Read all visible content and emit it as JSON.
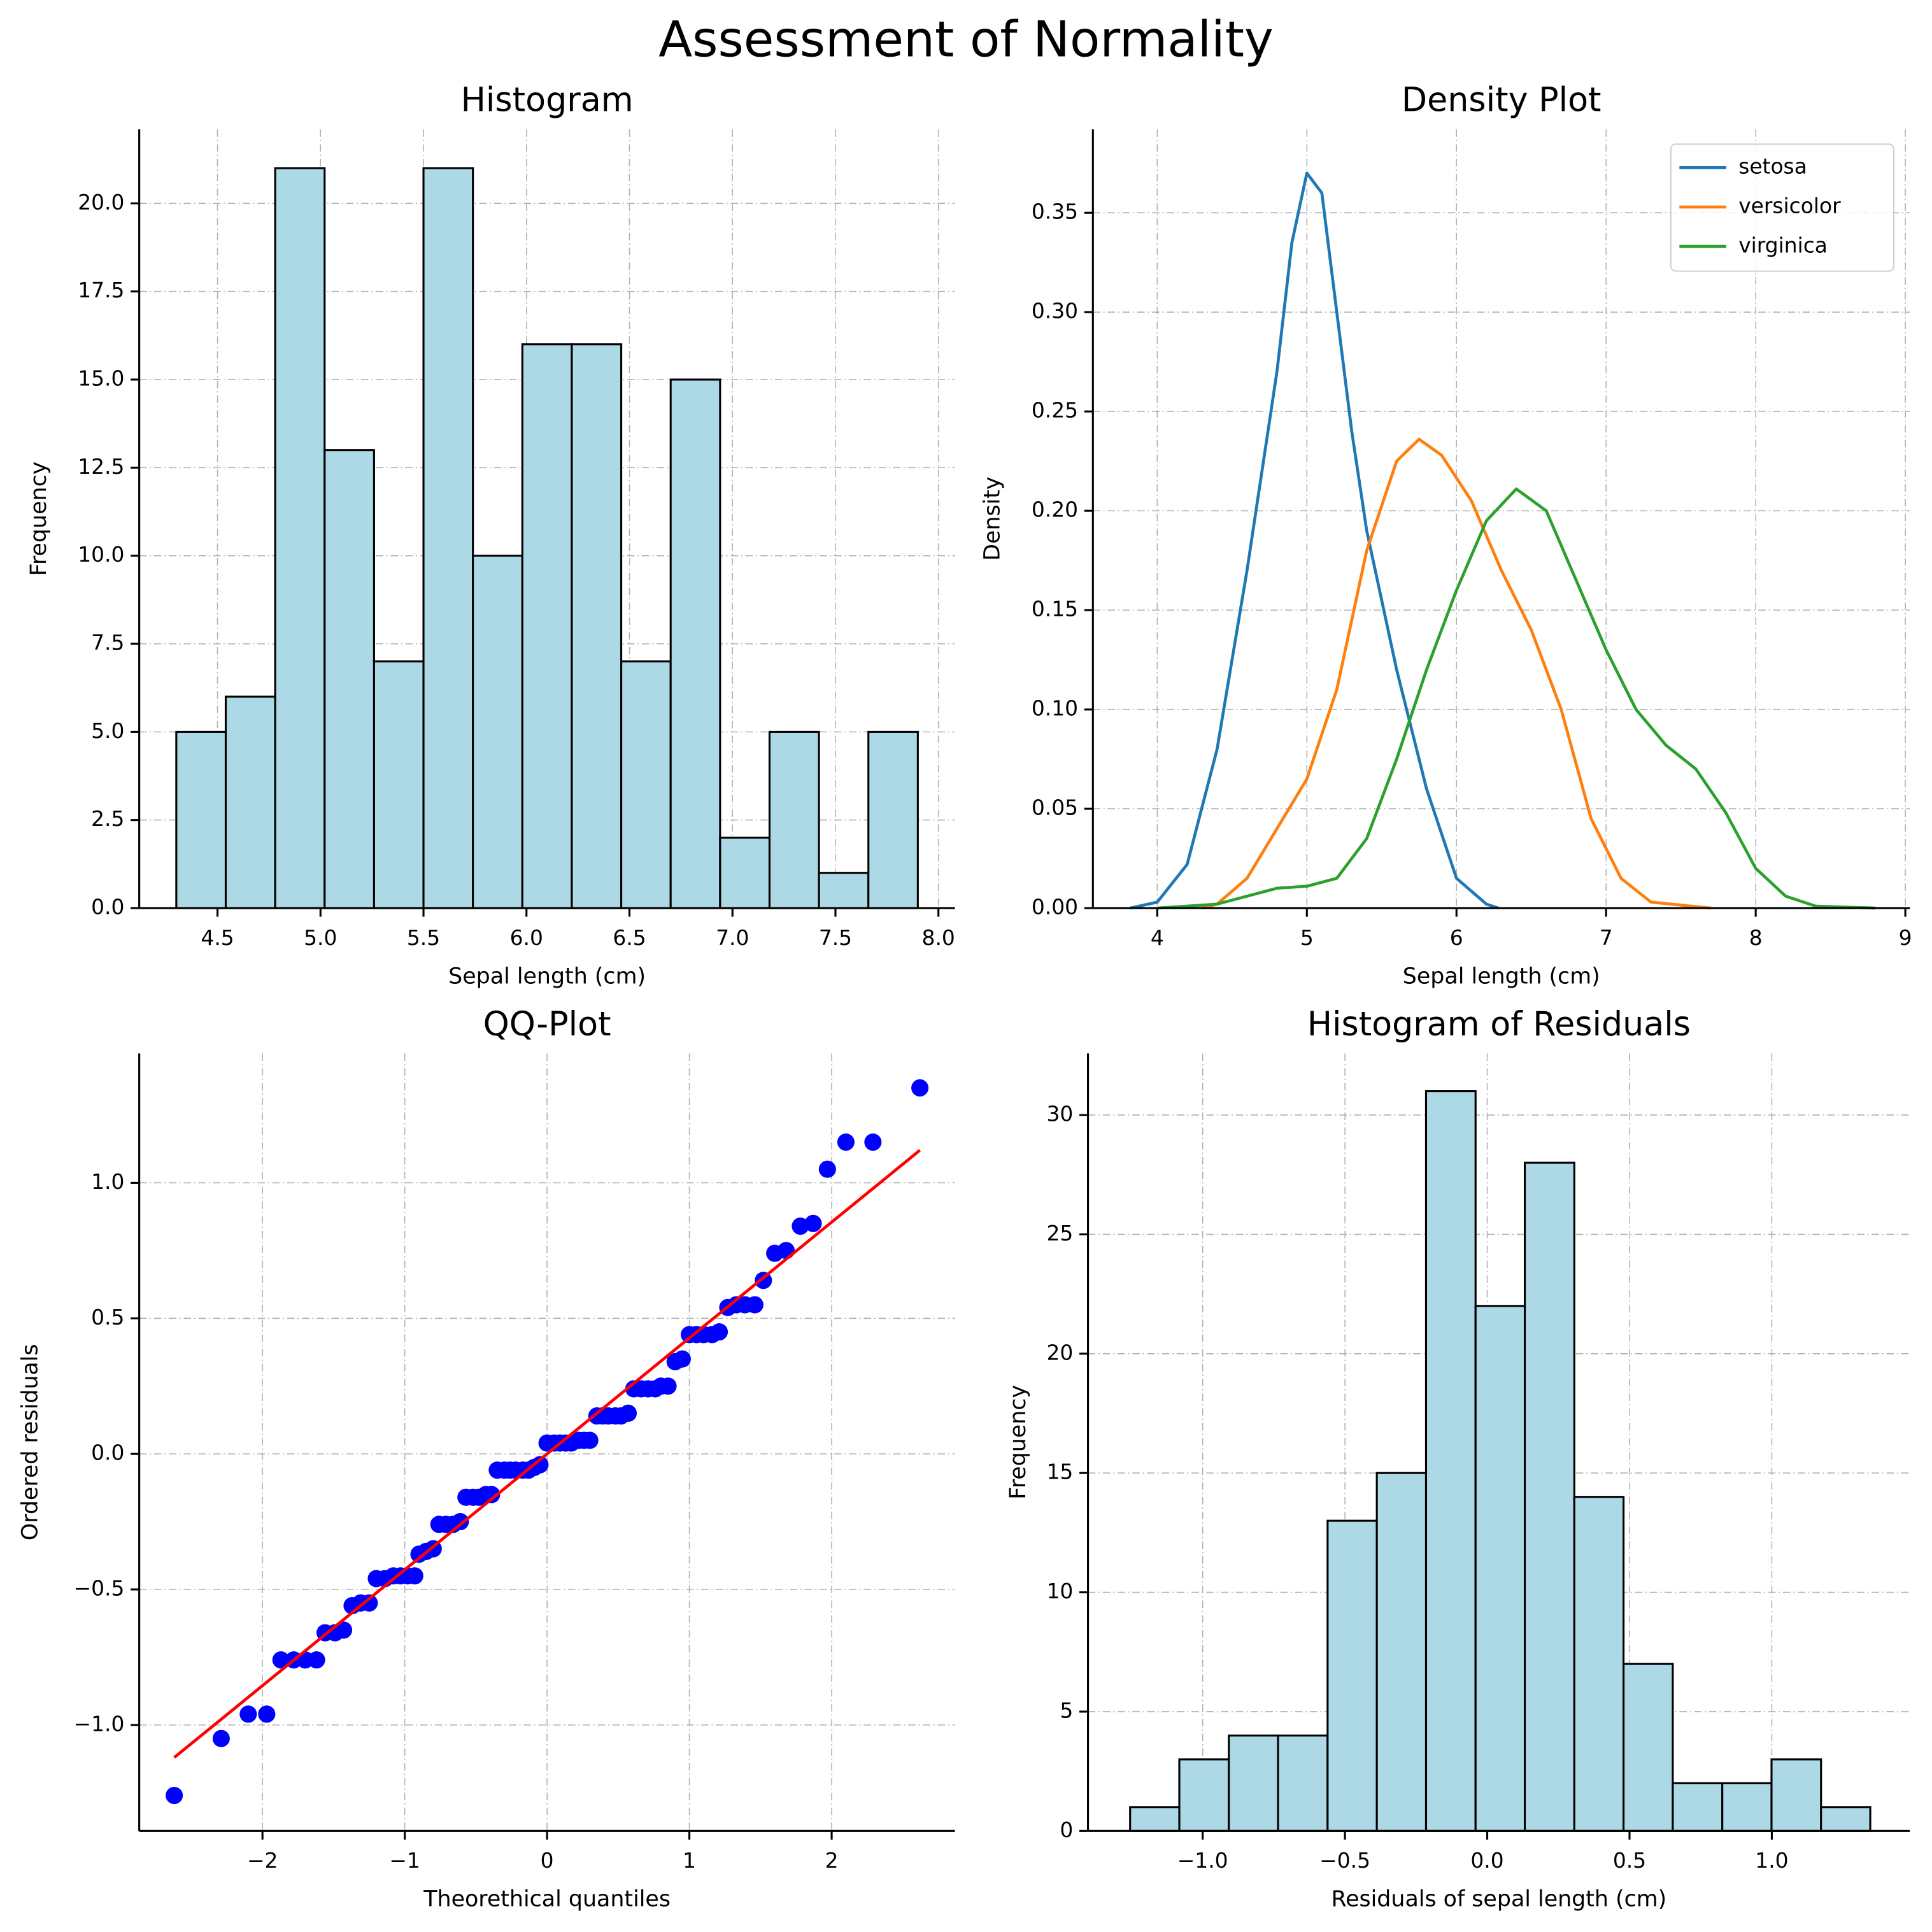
{
  "title": "Assessment of Normality",
  "chart_data": [
    {
      "type": "histogram",
      "title": "Histogram",
      "xlabel": "Sepal length (cm)",
      "ylabel": "Frequency",
      "bins": [
        4.3,
        4.54,
        4.78,
        5.02,
        5.26,
        5.5,
        5.74,
        5.98,
        6.22,
        6.46,
        6.7,
        6.94,
        7.18,
        7.42,
        7.66,
        7.9
      ],
      "values": [
        5,
        6,
        21,
        13,
        7,
        21,
        10,
        16,
        16,
        7,
        15,
        2,
        5,
        1,
        5
      ],
      "color": "#add8e6",
      "edgecolor": "#000000",
      "xlim": [
        4.12,
        8.08
      ],
      "ylim": [
        0,
        22.1
      ],
      "xticks": [
        4.5,
        {
          "value": 5,
          "label": "5.0"
        },
        5.5,
        {
          "value": 6,
          "label": "6.0"
        },
        6.5,
        {
          "value": 7,
          "label": "7.0"
        },
        7.5,
        {
          "value": 8,
          "label": "8.0"
        }
      ],
      "yticks": [
        {
          "value": 0,
          "label": "0.0"
        },
        2.5,
        {
          "value": 5,
          "label": "5.0"
        },
        7.5,
        {
          "value": 10,
          "label": "10.0"
        },
        12.5,
        {
          "value": 15,
          "label": "15.0"
        },
        17.5,
        {
          "value": 20,
          "label": "20.0"
        }
      ],
      "grid": true
    },
    {
      "type": "line",
      "title": "Density Plot",
      "xlabel": "Sepal length (cm)",
      "ylabel": "Density",
      "series": [
        {
          "name": "setosa",
          "color": "#1f77b4",
          "x": [
            3.82,
            4.0,
            4.2,
            4.4,
            4.6,
            4.8,
            4.9,
            5.0,
            5.1,
            5.2,
            5.3,
            5.4,
            5.6,
            5.8,
            6.0,
            6.2,
            6.28
          ],
          "values": [
            0.0,
            0.003,
            0.022,
            0.08,
            0.17,
            0.27,
            0.335,
            0.37,
            0.36,
            0.3,
            0.24,
            0.19,
            0.12,
            0.06,
            0.015,
            0.002,
            0.0
          ]
        },
        {
          "name": "versicolor",
          "color": "#ff7f0e",
          "x": [
            4.3,
            4.4,
            4.6,
            4.8,
            5.0,
            5.2,
            5.4,
            5.6,
            5.75,
            5.9,
            6.1,
            6.3,
            6.5,
            6.7,
            6.9,
            7.1,
            7.3,
            7.7
          ],
          "values": [
            0.0,
            0.002,
            0.015,
            0.04,
            0.065,
            0.11,
            0.18,
            0.225,
            0.236,
            0.228,
            0.205,
            0.17,
            0.14,
            0.1,
            0.045,
            0.015,
            0.003,
            0.0
          ]
        },
        {
          "name": "virginica",
          "color": "#2ca02c",
          "x": [
            4.0,
            4.4,
            4.8,
            5.0,
            5.2,
            5.4,
            5.6,
            5.8,
            6.0,
            6.2,
            6.4,
            6.6,
            6.8,
            7.0,
            7.2,
            7.4,
            7.6,
            7.8,
            8.0,
            8.2,
            8.4,
            8.8
          ],
          "values": [
            0.0,
            0.002,
            0.01,
            0.011,
            0.015,
            0.035,
            0.075,
            0.12,
            0.16,
            0.195,
            0.211,
            0.2,
            0.165,
            0.13,
            0.1,
            0.082,
            0.07,
            0.048,
            0.02,
            0.006,
            0.001,
            0.0
          ]
        }
      ],
      "legend": "upper right",
      "xlim": [
        3.57,
        9.03
      ],
      "ylim": [
        0,
        0.392
      ],
      "xticks": [
        4,
        5,
        6,
        7,
        8,
        9
      ],
      "yticks": [
        {
          "value": 0,
          "label": "0.00"
        },
        0.05,
        {
          "value": 0.1,
          "label": "0.10"
        },
        0.15,
        {
          "value": 0.2,
          "label": "0.20"
        },
        0.25,
        {
          "value": 0.3,
          "label": "0.30"
        },
        0.35
      ],
      "grid": true
    },
    {
      "type": "scatter",
      "title": "QQ-Plot",
      "xlabel": "Theorethical quantiles",
      "ylabel": "Ordered residuals",
      "x": [
        -2.62,
        -2.29,
        -2.1,
        -1.97,
        -1.87,
        -1.78,
        -1.7,
        -1.62,
        -1.56,
        -1.49,
        -1.43,
        -1.37,
        -1.31,
        -1.25,
        -1.2,
        -1.14,
        -1.08,
        -1.03,
        -0.98,
        -0.93,
        -0.9,
        -0.85,
        -0.8,
        -0.76,
        -0.71,
        -0.66,
        -0.61,
        -0.57,
        -0.52,
        -0.48,
        -0.43,
        -0.39,
        -0.35,
        -0.3,
        -0.26,
        -0.22,
        -0.17,
        -0.13,
        -0.09,
        -0.05,
        0,
        0.05,
        0.09,
        0.13,
        0.17,
        0.22,
        0.26,
        0.3,
        0.35,
        0.39,
        0.43,
        0.48,
        0.52,
        0.57,
        0.61,
        0.66,
        0.71,
        0.76,
        0.8,
        0.85,
        0.9,
        0.95,
        1.0,
        1.05,
        1.1,
        1.16,
        1.21,
        1.27,
        1.33,
        1.39,
        1.46,
        1.52,
        1.6,
        1.68,
        1.78,
        1.87,
        1.97,
        2.1,
        2.29,
        2.62
      ],
      "values": [
        -1.26,
        -1.05,
        -0.96,
        -0.96,
        -0.76,
        -0.76,
        -0.76,
        -0.76,
        -0.66,
        -0.66,
        -0.65,
        -0.56,
        -0.55,
        -0.55,
        -0.46,
        -0.46,
        -0.45,
        -0.45,
        -0.45,
        -0.45,
        -0.37,
        -0.36,
        -0.35,
        -0.26,
        -0.26,
        -0.26,
        -0.25,
        -0.16,
        -0.16,
        -0.16,
        -0.15,
        -0.15,
        -0.06,
        -0.06,
        -0.06,
        -0.06,
        -0.06,
        -0.06,
        -0.05,
        -0.04,
        0.04,
        0.04,
        0.04,
        0.04,
        0.04,
        0.05,
        0.05,
        0.05,
        0.14,
        0.14,
        0.14,
        0.14,
        0.14,
        0.15,
        0.24,
        0.24,
        0.24,
        0.24,
        0.25,
        0.25,
        0.34,
        0.35,
        0.44,
        0.44,
        0.44,
        0.44,
        0.45,
        0.54,
        0.55,
        0.55,
        0.55,
        0.64,
        0.74,
        0.75,
        0.84,
        0.85,
        1.05,
        1.15,
        1.15,
        1.35
      ],
      "color": "#0000ff",
      "fit_line": {
        "x": [
          -2.62,
          2.62
        ],
        "values": [
          -1.12,
          1.12
        ],
        "color": "#ff0000"
      },
      "xlim": [
        -2.866,
        2.866
      ],
      "ylim": [
        -1.391,
        1.477
      ],
      "xticks": [
        {
          "value": -2,
          "label": "−2"
        },
        {
          "value": -1,
          "label": "−1"
        },
        0,
        1,
        2
      ],
      "yticks": [
        {
          "value": -1,
          "label": "−1.0"
        },
        {
          "value": -0.5,
          "label": "−0.5"
        },
        {
          "value": 0,
          "label": "0.0"
        },
        0.5,
        {
          "value": 1,
          "label": "1.0"
        }
      ],
      "grid": true
    },
    {
      "type": "histogram",
      "title": "Histogram of Residuals",
      "xlabel": "Residuals of sepal length (cm)",
      "ylabel": "Frequency",
      "bins": [
        -1.255,
        -1.082,
        -0.908,
        -0.735,
        -0.561,
        -0.388,
        -0.215,
        -0.041,
        0.132,
        0.306,
        0.479,
        0.652,
        0.826,
        0.999,
        1.173,
        1.346
      ],
      "values": [
        1,
        3,
        4,
        4,
        13,
        15,
        31,
        22,
        28,
        14,
        7,
        2,
        2,
        3,
        1
      ],
      "color": "#add8e6",
      "edgecolor": "#000000",
      "xlim": [
        -1.403,
        1.485
      ],
      "ylim": [
        0,
        32.58
      ],
      "xticks": [
        {
          "value": -1,
          "label": "−1.0"
        },
        {
          "value": -0.5,
          "label": "−0.5"
        },
        {
          "value": 0,
          "label": "0.0"
        },
        0.5,
        {
          "value": 1,
          "label": "1.0"
        }
      ],
      "yticks": [
        0,
        5,
        10,
        15,
        20,
        25,
        30
      ],
      "grid": true
    }
  ]
}
